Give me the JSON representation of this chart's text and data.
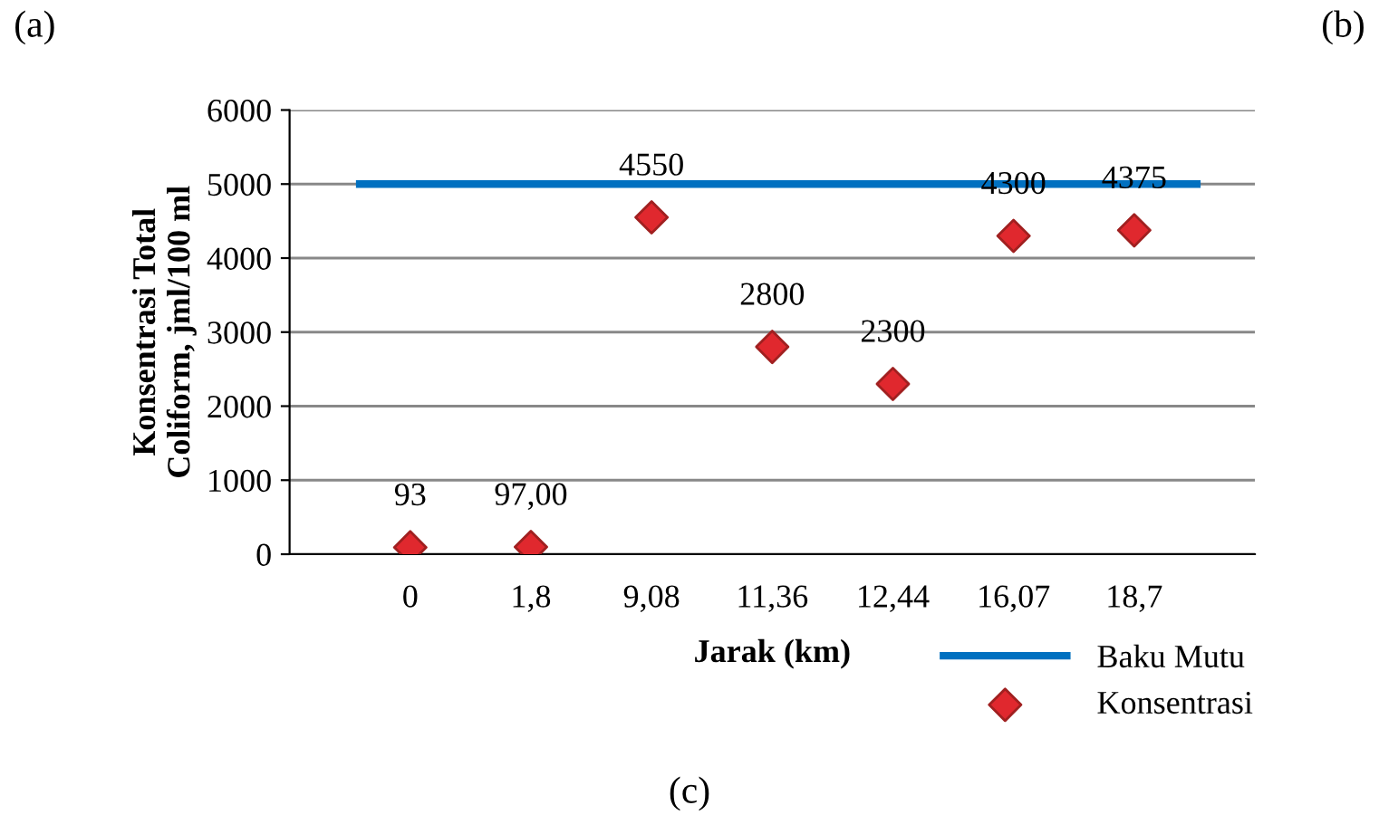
{
  "chart_data": {
    "type": "scatter",
    "xlabel": "Jarak (km)",
    "ylabel": "Konsentrasi Total\nColiform, jml/100 ml",
    "categories": [
      "0",
      "1,8",
      "9,08",
      "11,36",
      "12,44",
      "16,07",
      "18,7"
    ],
    "series": [
      {
        "name": "Konsentrasi",
        "color": "#e0282e",
        "values": [
          93,
          97,
          4550,
          2800,
          2300,
          4300,
          4375
        ],
        "value_labels": [
          "93",
          "97,00",
          "4550",
          "2800",
          "2300",
          "4300",
          "4375"
        ]
      }
    ],
    "ref_lines": [
      {
        "axis": "y",
        "value": 5000,
        "label": "Baku Mutu",
        "color": "#0070c0",
        "line_style": "solid"
      }
    ],
    "marker": "diamond",
    "ylim": [
      0,
      6000
    ],
    "yticks": [
      0,
      1000,
      2000,
      3000,
      4000,
      5000,
      6000
    ],
    "grid": "y",
    "legend": "bottom right",
    "annotations": [
      "(a)",
      "(b)",
      "(c)"
    ]
  }
}
